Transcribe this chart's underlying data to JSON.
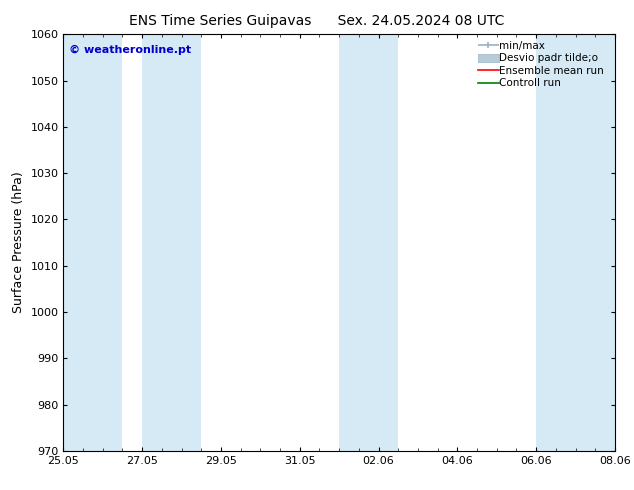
{
  "title_left": "ENS Time Series Guipavas",
  "title_right": "Sex. 24.05.2024 08 UTC",
  "ylabel": "Surface Pressure (hPa)",
  "ylim": [
    970,
    1060
  ],
  "yticks": [
    970,
    980,
    990,
    1000,
    1010,
    1020,
    1030,
    1040,
    1050,
    1060
  ],
  "xstart_days": 0,
  "xend_days": 14,
  "xtick_labels": [
    "25.05",
    "27.05",
    "29.05",
    "31.05",
    "02.06",
    "04.06",
    "06.06",
    "08.06"
  ],
  "xtick_positions_days": [
    0,
    2,
    4,
    6,
    8,
    10,
    12,
    14
  ],
  "shaded_bands": [
    {
      "start": 0,
      "end": 1.5
    },
    {
      "start": 2,
      "end": 3.5
    },
    {
      "start": 7,
      "end": 8.5
    },
    {
      "start": 12,
      "end": 14
    }
  ],
  "band_color": "#d6eaf5",
  "watermark": "© weatheronline.pt",
  "watermark_color": "#0000cc",
  "legend_labels": [
    "min/max",
    "Desvio padr tilde;o",
    "Ensemble mean run",
    "Controll run"
  ],
  "legend_colors_line": [
    "#9ab0c0",
    "#b8ccd8",
    "#ff0000",
    "#008000"
  ],
  "background_color": "#ffffff",
  "plot_bg_color": "#ffffff",
  "title_fontsize": 10,
  "tick_fontsize": 8,
  "ylabel_fontsize": 9,
  "legend_fontsize": 7.5
}
